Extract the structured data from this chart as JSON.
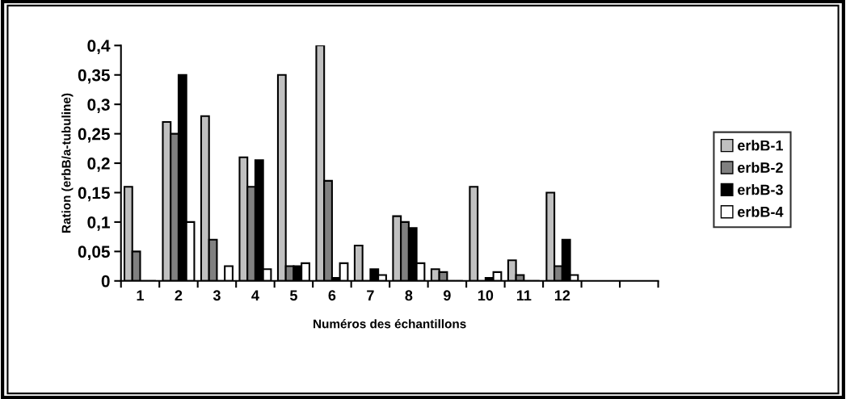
{
  "chart_data": {
    "type": "bar",
    "xlabel": "Numéros des échantillons",
    "ylabel": "Ration (erbB/a-tubuline)",
    "categories": [
      "1",
      "2",
      "3",
      "4",
      "5",
      "6",
      "7",
      "8",
      "9",
      "10",
      "11",
      "12",
      null,
      null
    ],
    "series": [
      {
        "name": "erbB-1",
        "color": "#c0c0c0",
        "values": [
          0.16,
          0.27,
          0.28,
          0.21,
          0.35,
          0.4,
          0.06,
          0.11,
          0.02,
          0.16,
          0.035,
          0.15,
          null,
          null
        ]
      },
      {
        "name": "erbB-2",
        "color": "#808080",
        "values": [
          0.05,
          0.25,
          0.07,
          0.16,
          0.025,
          0.17,
          0,
          0.1,
          0.015,
          0,
          0.01,
          0.025,
          null,
          null
        ]
      },
      {
        "name": "erbB-3",
        "color": "#000000",
        "values": [
          0,
          0.35,
          0,
          0.205,
          0.025,
          0.005,
          0.02,
          0.09,
          0,
          0.005,
          0,
          0.07,
          null,
          null
        ]
      },
      {
        "name": "erbB-4",
        "color": "#ffffff",
        "values": [
          0,
          0.1,
          0.025,
          0.02,
          0.03,
          0.03,
          0.01,
          0.03,
          0,
          0.015,
          0,
          0.01,
          null,
          null
        ]
      }
    ],
    "ylim": [
      0,
      0.4
    ],
    "yticks": [
      0,
      {
        "value": 0.05,
        "label": "0,05"
      },
      {
        "value": 0.1,
        "label": "0,1"
      },
      {
        "value": 0.15,
        "label": "0,15"
      },
      {
        "value": 0.2,
        "label": "0,2"
      },
      {
        "value": 0.25,
        "label": "0,25"
      },
      {
        "value": 0.3,
        "label": "0,3"
      },
      {
        "value": 0.35,
        "label": "0,35"
      },
      {
        "value": 0.4,
        "label": "0,4"
      }
    ],
    "grid": false,
    "legend": "right"
  }
}
